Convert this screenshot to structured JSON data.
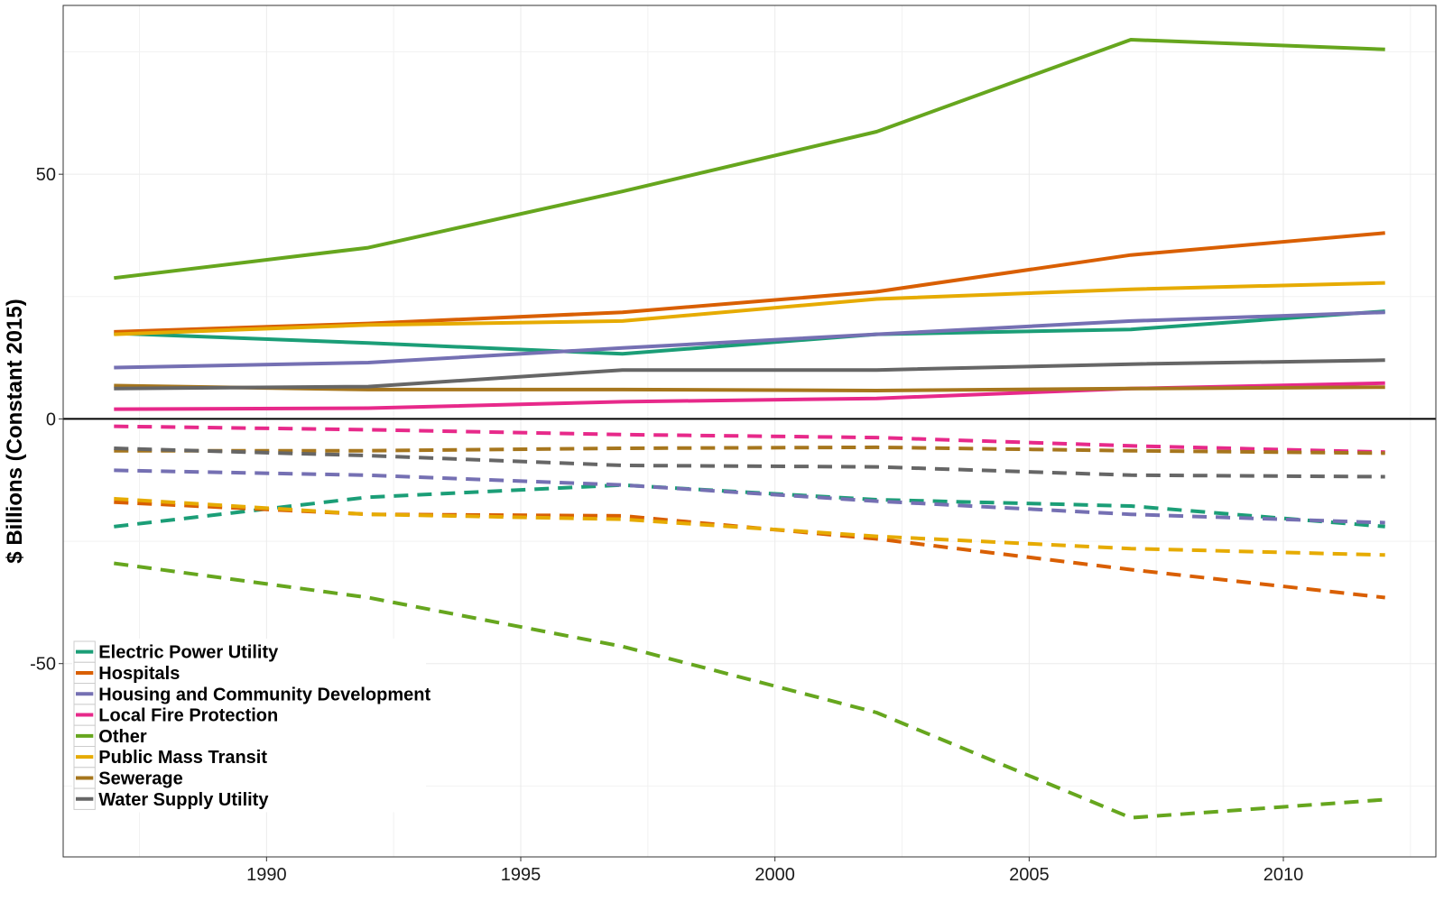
{
  "chart_data": {
    "type": "line",
    "xlabel": "",
    "ylabel": "$ Billions (Constant 2015)",
    "xlim": [
      1986,
      2013
    ],
    "ylim": [
      -89.5,
      84.5
    ],
    "x_ticks": [
      1990,
      1995,
      2000,
      2005,
      2010
    ],
    "y_ticks": [
      -50,
      0,
      50
    ],
    "y_tick_labels": [
      "-50",
      "0",
      "50"
    ],
    "grid": true,
    "zero_line": true,
    "legend_position": "bottom-left",
    "line_styles": {
      "positive": "solid",
      "negative": "dashed"
    },
    "x": [
      1987,
      1992,
      1997,
      2002,
      2007,
      2012
    ],
    "series": [
      {
        "name": "Electric Power Utility",
        "color": "#1b9e77",
        "positive": [
          17.5,
          15.5,
          13.3,
          17.3,
          18.3,
          22.0
        ],
        "negative": [
          -22.0,
          -16.0,
          -13.5,
          -16.5,
          -17.8,
          -22.0
        ]
      },
      {
        "name": "Hospitals",
        "color": "#d95f02",
        "positive": [
          17.8,
          19.5,
          21.8,
          26.0,
          33.5,
          38.0
        ],
        "negative": [
          -17.0,
          -19.5,
          -19.8,
          -24.5,
          -30.8,
          -36.5
        ]
      },
      {
        "name": "Housing and Community Development",
        "color": "#7570b3",
        "positive": [
          10.5,
          11.5,
          14.5,
          17.3,
          20.0,
          21.8
        ],
        "negative": [
          -10.5,
          -11.5,
          -13.5,
          -16.8,
          -19.5,
          -21.2
        ]
      },
      {
        "name": "Local Fire Protection",
        "color": "#e7298a",
        "positive": [
          2.0,
          2.2,
          3.5,
          4.2,
          6.2,
          7.3
        ],
        "negative": [
          -1.5,
          -2.2,
          -3.2,
          -3.8,
          -5.5,
          -6.8
        ]
      },
      {
        "name": "Other",
        "color": "#66a61e",
        "positive": [
          28.8,
          35.0,
          46.5,
          58.7,
          77.5,
          75.5
        ],
        "negative": [
          -29.5,
          -36.5,
          -46.5,
          -60.0,
          -81.5,
          -77.8
        ]
      },
      {
        "name": "Public Mass Transit",
        "color": "#e6ab02",
        "positive": [
          17.3,
          19.2,
          20.0,
          24.5,
          26.5,
          27.8
        ],
        "negative": [
          -16.3,
          -19.5,
          -20.5,
          -24.0,
          -26.5,
          -27.8
        ]
      },
      {
        "name": "Sewerage",
        "color": "#a6761d",
        "positive": [
          6.8,
          6.0,
          6.0,
          5.8,
          6.2,
          6.5
        ],
        "negative": [
          -6.5,
          -6.5,
          -6.0,
          -5.8,
          -6.5,
          -7.0
        ]
      },
      {
        "name": "Water Supply Utility",
        "color": "#666666",
        "positive": [
          6.2,
          6.6,
          10.0,
          10.0,
          11.2,
          12.0
        ],
        "negative": [
          -6.0,
          -7.5,
          -9.5,
          -9.8,
          -11.5,
          -11.8
        ]
      }
    ]
  }
}
